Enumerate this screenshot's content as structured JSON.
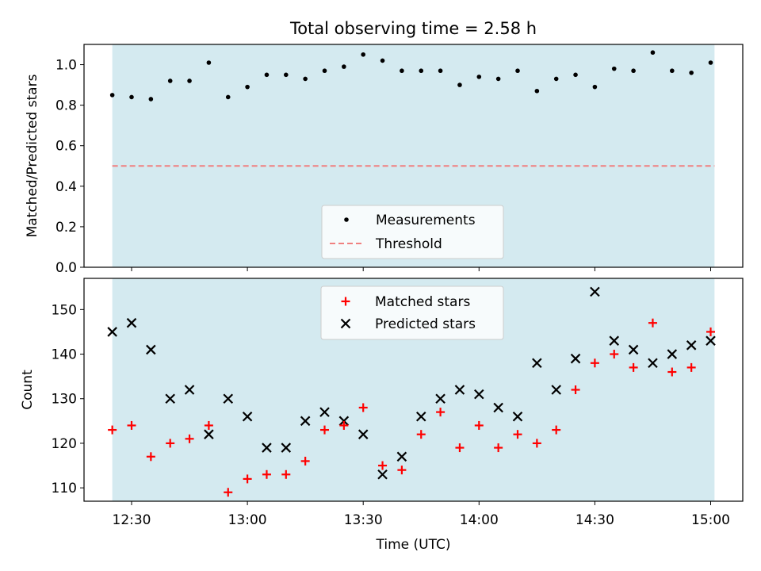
{
  "chart_data": [
    {
      "type": "scatter",
      "title": "Total observing time = 2.58 h",
      "ylabel": "Matched/Predicted stars",
      "xlabel": "",
      "ylim": [
        0,
        1.1
      ],
      "yticks": [
        0.0,
        0.2,
        0.4,
        0.6,
        0.8,
        1.0
      ],
      "ytick_labels": [
        "0.0",
        "0.2",
        "0.4",
        "0.6",
        "0.8",
        "1.0"
      ],
      "x_axis": "time (UTC)",
      "observing_window": [
        "12:25",
        "15:01"
      ],
      "series": [
        {
          "name": "Measurements",
          "color": "#000000",
          "marker": "dot",
          "x": [
            "12:25",
            "12:30",
            "12:35",
            "12:40",
            "12:45",
            "12:50",
            "12:55",
            "13:00",
            "13:05",
            "13:10",
            "13:15",
            "13:20",
            "13:25",
            "13:30",
            "13:35",
            "13:40",
            "13:45",
            "13:50",
            "13:55",
            "14:00",
            "14:05",
            "14:10",
            "14:15",
            "14:20",
            "14:25",
            "14:30",
            "14:35",
            "14:40",
            "14:45",
            "14:50",
            "14:55",
            "15:00"
          ],
          "y": [
            0.85,
            0.84,
            0.83,
            0.92,
            0.92,
            1.01,
            0.84,
            0.89,
            0.95,
            0.95,
            0.93,
            0.97,
            0.99,
            1.05,
            1.02,
            0.97,
            0.97,
            0.97,
            0.9,
            0.94,
            0.93,
            0.97,
            0.87,
            0.93,
            0.95,
            0.89,
            0.98,
            0.97,
            1.06,
            0.97,
            0.96,
            1.01
          ]
        },
        {
          "name": "Threshold",
          "color": "#f08080",
          "style": "dashed",
          "x": [
            "12:25",
            "15:01"
          ],
          "y": [
            0.5,
            0.5
          ]
        }
      ],
      "legend": "lower-center",
      "background_span_color": "#d4eaf0"
    },
    {
      "type": "scatter",
      "title": "",
      "ylabel": "Count",
      "xlabel": "Time (UTC)",
      "ylim": [
        107,
        157
      ],
      "yticks": [
        110,
        120,
        130,
        140,
        150
      ],
      "ytick_labels": [
        "110",
        "120",
        "130",
        "140",
        "150"
      ],
      "xticks": [
        "12:30",
        "13:00",
        "13:30",
        "14:00",
        "14:30",
        "15:00"
      ],
      "xtick_labels": [
        "12:30",
        "13:00",
        "13:30",
        "14:00",
        "14:30",
        "15:00"
      ],
      "series": [
        {
          "name": "Matched stars",
          "color": "#ff0000",
          "marker": "plus",
          "x": [
            "12:25",
            "12:30",
            "12:35",
            "12:40",
            "12:45",
            "12:50",
            "12:55",
            "13:00",
            "13:05",
            "13:10",
            "13:15",
            "13:20",
            "13:25",
            "13:30",
            "13:35",
            "13:40",
            "13:45",
            "13:50",
            "13:55",
            "14:00",
            "14:05",
            "14:10",
            "14:15",
            "14:20",
            "14:25",
            "14:30",
            "14:35",
            "14:40",
            "14:45",
            "14:50",
            "14:55",
            "15:00"
          ],
          "y": [
            123,
            124,
            117,
            120,
            121,
            124,
            109,
            112,
            113,
            113,
            116,
            123,
            124,
            128,
            115,
            114,
            122,
            127,
            119,
            124,
            119,
            122,
            120,
            123,
            132,
            138,
            140,
            137,
            147,
            136,
            137,
            145
          ]
        },
        {
          "name": "Predicted stars",
          "color": "#000000",
          "marker": "x",
          "x": [
            "12:25",
            "12:30",
            "12:35",
            "12:40",
            "12:45",
            "12:50",
            "12:55",
            "13:00",
            "13:05",
            "13:10",
            "13:15",
            "13:20",
            "13:25",
            "13:30",
            "13:35",
            "13:40",
            "13:45",
            "13:50",
            "13:55",
            "14:00",
            "14:05",
            "14:10",
            "14:15",
            "14:20",
            "14:25",
            "14:30",
            "14:35",
            "14:40",
            "14:45",
            "14:50",
            "14:55",
            "15:00"
          ],
          "y": [
            145,
            147,
            141,
            130,
            132,
            122,
            130,
            126,
            119,
            119,
            125,
            127,
            125,
            122,
            113,
            117,
            126,
            130,
            132,
            131,
            128,
            126,
            138,
            132,
            139,
            154,
            143,
            141,
            138,
            140,
            142,
            143
          ]
        }
      ],
      "legend": "upper-center",
      "background_span_color": "#d4eaf0"
    }
  ]
}
